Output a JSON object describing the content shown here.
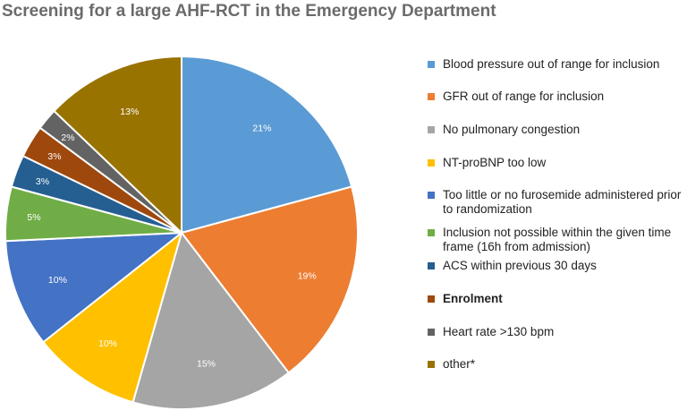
{
  "chart_data": {
    "type": "pie",
    "title": "Screening for a large AHF-RCT in the Emergency Department",
    "legend_position": "right",
    "slices": [
      {
        "label": "Blood pressure out of range for inclusion",
        "value": 21,
        "display": "21%",
        "color": "#5B9BD5",
        "bold": false
      },
      {
        "label": "GFR out of range for inclusion",
        "value": 19,
        "display": "19%",
        "color": "#ED7D31",
        "bold": false
      },
      {
        "label": "No pulmonary congestion",
        "value": 15,
        "display": "15%",
        "color": "#A5A5A5",
        "bold": false
      },
      {
        "label": "NT-proBNP too low",
        "value": 10,
        "display": "10%",
        "color": "#FFC000",
        "bold": false
      },
      {
        "label": "Too little or no furosemide administered prior to randomization",
        "value": 10,
        "display": "10%",
        "color": "#4472C4",
        "bold": false
      },
      {
        "label": "Inclusion not possible within the given time frame (16h from admission)",
        "value": 5,
        "display": "5%",
        "color": "#70AD47",
        "bold": false
      },
      {
        "label": "ACS within previous 30 days",
        "value": 3,
        "display": "3%",
        "color": "#255E91",
        "bold": false
      },
      {
        "label": "Enrolment",
        "value": 3,
        "display": "3%",
        "color": "#9E480E",
        "bold": true
      },
      {
        "label": "Heart rate >130 bpm",
        "value": 2,
        "display": "2%",
        "color": "#636363",
        "bold": false
      },
      {
        "label": "other*",
        "value": 13,
        "display": "13%",
        "color": "#997300",
        "bold": false
      }
    ]
  }
}
